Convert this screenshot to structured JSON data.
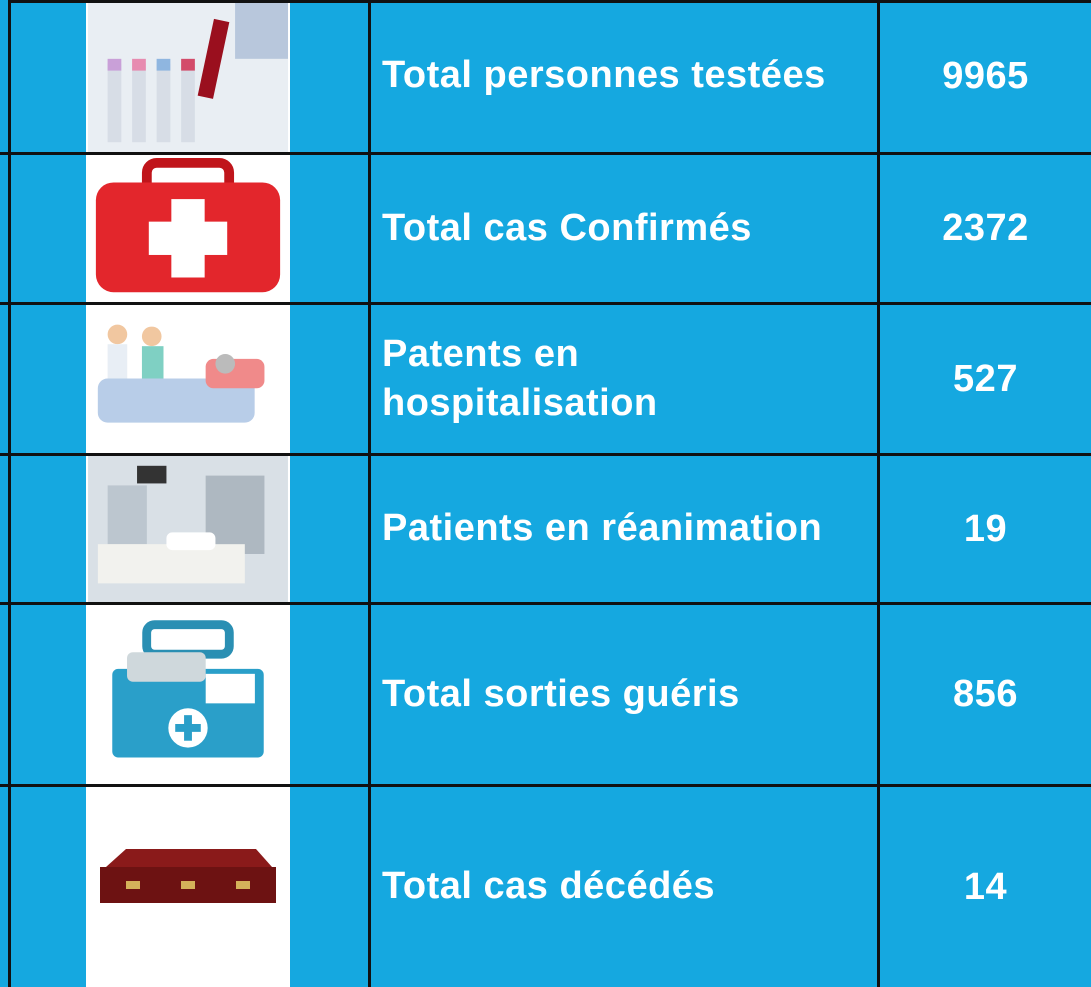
{
  "table": {
    "rows": [
      {
        "label": "Total personnes testées",
        "value": 9965
      },
      {
        "label": "Total cas Confirmés",
        "value": 2372
      },
      {
        "label": "Patents en hospitalisation",
        "value": 527
      },
      {
        "label": "Patients en réanimation",
        "value": 19
      },
      {
        "label": "Total sorties guéris",
        "value": 856
      },
      {
        "label": "Total cas décédés",
        "value": 14
      }
    ]
  }
}
